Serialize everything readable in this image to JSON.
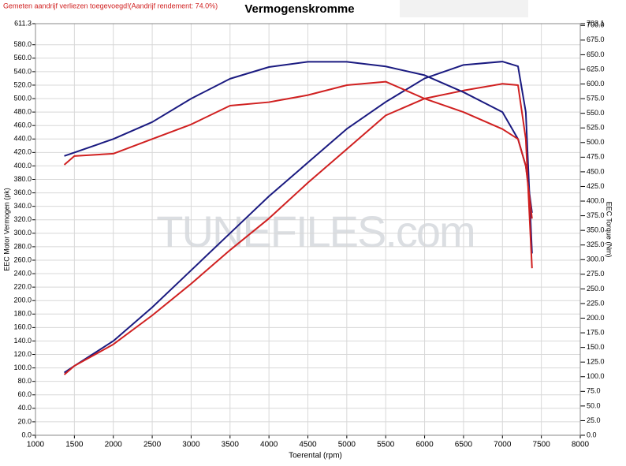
{
  "chart_data": {
    "type": "line",
    "note": "Gemeten aandrijf verliezen toegevoegd!(Aandrijf rendement: 74.0%)",
    "title": "Vermogenskromme",
    "watermark": "TUNEFILES.com",
    "xlabel": "Toerental (rpm)",
    "ylabel": "EEC Motor Vermogen (pk)",
    "y2label": "EEC Torque (Nm)",
    "x": [
      1370,
      1500,
      2000,
      2500,
      3000,
      3500,
      4000,
      4500,
      5000,
      5500,
      6000,
      6500,
      7000,
      7200,
      7300,
      7380
    ],
    "series": [
      {
        "color": "#1a1a80",
        "values": [
          93,
          103,
          140,
          190,
          245,
          300,
          355,
          405,
          455,
          495,
          530,
          550,
          555,
          548,
          480,
          270
        ]
      },
      {
        "color": "#d02020",
        "values": [
          90,
          103,
          135,
          178,
          225,
          275,
          322,
          375,
          425,
          475,
          500,
          512,
          522,
          520,
          440,
          248
        ]
      },
      {
        "color": "#1a1a80",
        "axis": "y2",
        "values": [
          477,
          483,
          506,
          535,
          575,
          609,
          629,
          638,
          638,
          630,
          615,
          586,
          552,
          506,
          460,
          380
        ]
      },
      {
        "color": "#d02020",
        "axis": "y2",
        "values": [
          462,
          477,
          481,
          506,
          531,
          563,
          569,
          581,
          598,
          604,
          575,
          552,
          523,
          506,
          460,
          370
        ]
      }
    ],
    "xlim": [
      1000,
      8000
    ],
    "xticks": [
      1000,
      1500,
      2000,
      2500,
      3000,
      3500,
      4000,
      4500,
      5000,
      5500,
      6000,
      6500,
      7000,
      7500,
      8000
    ],
    "ylim": [
      0,
      611.3
    ],
    "yticks": [
      {
        "value": 0,
        "label": "0.0"
      },
      {
        "value": 20,
        "label": "20.0"
      },
      {
        "value": 40,
        "label": "40.0"
      },
      {
        "value": 60,
        "label": "60.0"
      },
      {
        "value": 80,
        "label": "80.0"
      },
      {
        "value": 100,
        "label": "100.0"
      },
      {
        "value": 120,
        "label": "120.0"
      },
      {
        "value": 140,
        "label": "140.0"
      },
      {
        "value": 160,
        "label": "160.0"
      },
      {
        "value": 180,
        "label": "180.0"
      },
      {
        "value": 200,
        "label": "200.0"
      },
      {
        "value": 220,
        "label": "220.0"
      },
      {
        "value": 240,
        "label": "240.0"
      },
      {
        "value": 260,
        "label": "260.0"
      },
      {
        "value": 280,
        "label": "280.0"
      },
      {
        "value": 300,
        "label": "300.0"
      },
      {
        "value": 320,
        "label": "320.0"
      },
      {
        "value": 340,
        "label": "340.0"
      },
      {
        "value": 360,
        "label": "360.0"
      },
      {
        "value": 380,
        "label": "380.0"
      },
      {
        "value": 400,
        "label": "400.0"
      },
      {
        "value": 420,
        "label": "420.0"
      },
      {
        "value": 440,
        "label": "440.0"
      },
      {
        "value": 460,
        "label": "460.0"
      },
      {
        "value": 480,
        "label": "480.0"
      },
      {
        "value": 500,
        "label": "500.0"
      },
      {
        "value": 520,
        "label": "520.0"
      },
      {
        "value": 540,
        "label": "540.0"
      },
      {
        "value": 560,
        "label": "560.0"
      },
      {
        "value": 580,
        "label": "580.0"
      },
      611.3
    ],
    "y2lim": [
      0,
      703.1
    ],
    "y2ticks": [
      {
        "value": 0,
        "label": "0.0"
      },
      {
        "value": 25,
        "label": "25.0"
      },
      {
        "value": 50,
        "label": "50.0"
      },
      {
        "value": 75,
        "label": "75.0"
      },
      {
        "value": 100,
        "label": "100.0"
      },
      {
        "value": 125,
        "label": "125.0"
      },
      {
        "value": 150,
        "label": "150.0"
      },
      {
        "value": 175,
        "label": "175.0"
      },
      {
        "value": 200,
        "label": "200.0"
      },
      {
        "value": 225,
        "label": "225.0"
      },
      {
        "value": 250,
        "label": "250.0"
      },
      {
        "value": 275,
        "label": "275.0"
      },
      {
        "value": 300,
        "label": "300.0"
      },
      {
        "value": 325,
        "label": "325.0"
      },
      {
        "value": 350,
        "label": "350.0"
      },
      {
        "value": 375,
        "label": "375.0"
      },
      {
        "value": 400,
        "label": "400.0"
      },
      {
        "value": 425,
        "label": "425.0"
      },
      {
        "value": 450,
        "label": "450.0"
      },
      {
        "value": 475,
        "label": "475.0"
      },
      {
        "value": 500,
        "label": "500.0"
      },
      {
        "value": 525,
        "label": "525.0"
      },
      {
        "value": 550,
        "label": "550.0"
      },
      {
        "value": 575,
        "label": "575.0"
      },
      {
        "value": 600,
        "label": "600.0"
      },
      {
        "value": 625,
        "label": "625.0"
      },
      {
        "value": 650,
        "label": "650.0"
      },
      {
        "value": 675,
        "label": "675.0"
      },
      {
        "value": 700,
        "label": "700.0"
      },
      703.1
    ],
    "grid": true
  }
}
